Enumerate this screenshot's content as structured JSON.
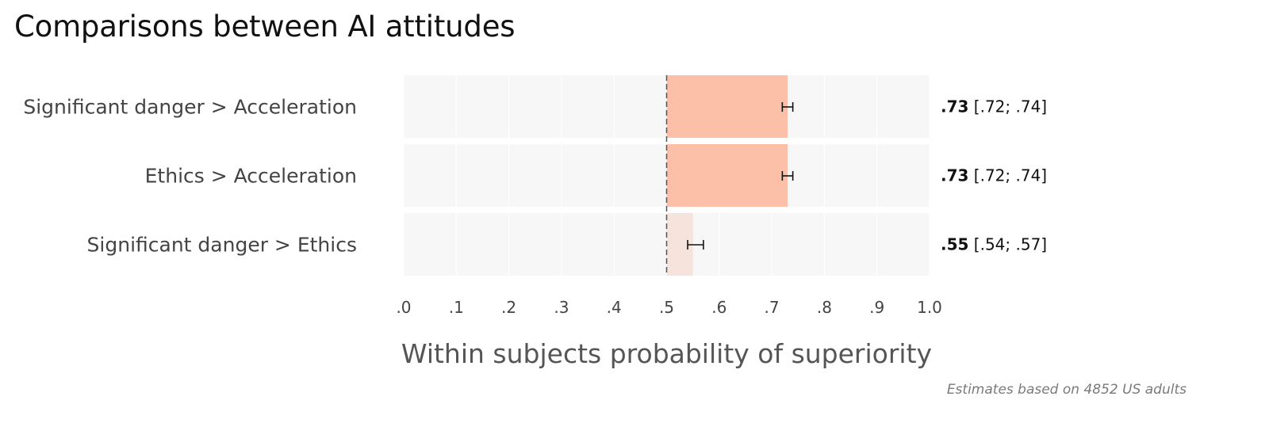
{
  "title": "Comparisons between AI attitudes",
  "caption": "Estimates based on 4852 US adults",
  "chart_data": {
    "type": "bar",
    "orientation": "horizontal",
    "title": "Comparisons between AI attitudes",
    "xlabel": "Within subjects probability of superiority",
    "ylabel": "",
    "xlim": [
      0,
      1
    ],
    "xticks": [
      0,
      0.1,
      0.2,
      0.3,
      0.4,
      0.5,
      0.6,
      0.7,
      0.8,
      0.9,
      1.0
    ],
    "xtick_labels": [
      ".0",
      ".1",
      ".2",
      ".3",
      ".4",
      ".5",
      ".6",
      ".7",
      ".8",
      ".9",
      "1.0"
    ],
    "reference_line": 0.5,
    "bar_baseline": 0.5,
    "grid": true,
    "categories": [
      "Significant danger > Acceleration",
      "Ethics > Acceleration",
      "Significant danger > Ethics"
    ],
    "values": [
      0.73,
      0.73,
      0.55
    ],
    "ci_low": [
      0.72,
      0.72,
      0.54
    ],
    "ci_high": [
      0.74,
      0.74,
      0.57
    ],
    "value_labels": [
      ".73",
      ".73",
      ".55"
    ],
    "ci_labels": [
      "[.72; .74]",
      "[.72; .74]",
      "[.54; .57]"
    ],
    "colors": {
      "strong": "#fbc0a7",
      "weak": "#f6e3dc",
      "panel": "#f8f7f7",
      "grid": "#ffffff",
      "reference_line": "#555555",
      "errorbar": "#111111"
    }
  }
}
